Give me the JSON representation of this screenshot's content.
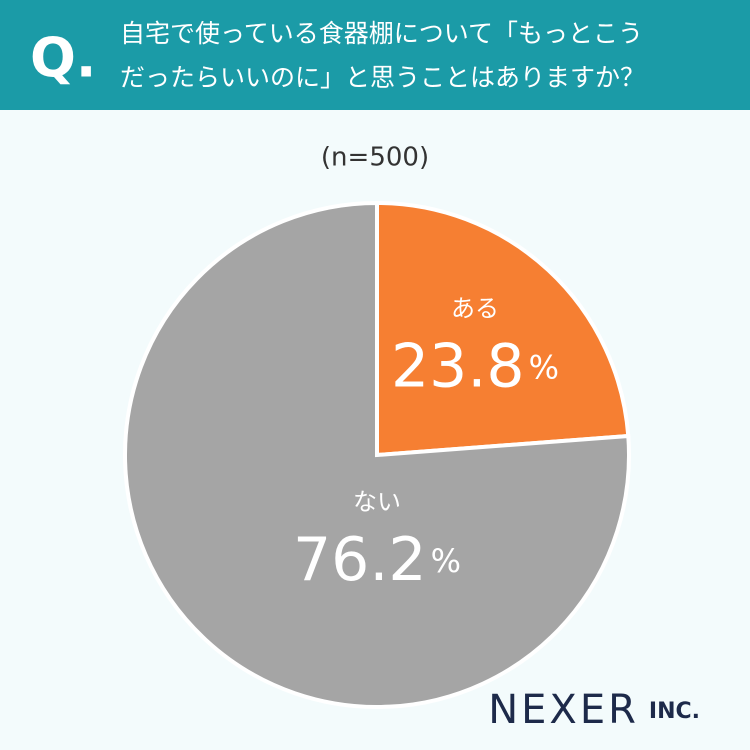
{
  "chart_data": {
    "type": "pie",
    "question_marker": "Q.",
    "title": [
      "自宅で使っている食器棚について「もっとこう",
      "だったらいいのに」と思うことはありますか？"
    ],
    "subtitle": "(n=500)",
    "categories": [
      "ある",
      "ない"
    ],
    "values": [
      23.8,
      76.2
    ],
    "unit": "%",
    "colors": [
      "#f67f32",
      "#a5a5a5"
    ],
    "logo": {
      "name": "NEXER",
      "suffix": "INC."
    }
  }
}
